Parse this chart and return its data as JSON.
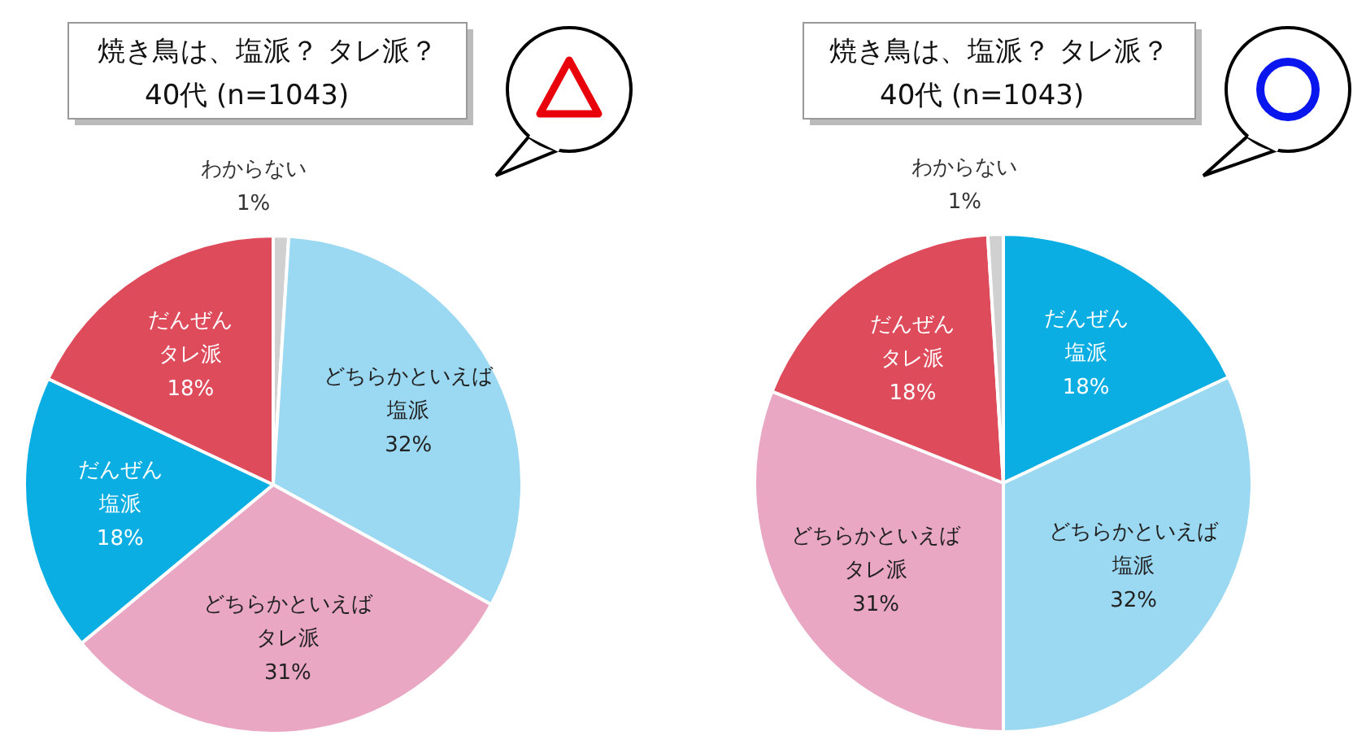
{
  "chart_data": [
    {
      "type": "pie",
      "title": "焼き鳥は、塩派？ タレ派？",
      "subtitle": "40代 (n=1043)",
      "categories": [
        "わからない",
        "どちらかといえば塩派",
        "どちらかといえばタレ派",
        "だんぜん塩派",
        "だんぜんタレ派"
      ],
      "values": [
        1,
        32,
        31,
        18,
        18
      ],
      "value_labels": [
        "1%",
        "32%",
        "31%",
        "18%",
        "18%"
      ],
      "colors": [
        "#d0d0d0",
        "#9bd8f2",
        "#eaa7c3",
        "#0aaee2",
        "#de4b5b"
      ]
    },
    {
      "type": "pie",
      "title": "焼き鳥は、塩派？ タレ派？",
      "subtitle": "40代 (n=1043)",
      "categories": [
        "だんぜん塩派",
        "どちらかといえば塩派",
        "どちらかといえばタレ派",
        "だんぜんタレ派",
        "わからない"
      ],
      "values": [
        18,
        32,
        31,
        18,
        1
      ],
      "value_labels": [
        "18%",
        "32%",
        "31%",
        "18%",
        "1%"
      ],
      "colors": [
        "#0aaee2",
        "#9bd8f2",
        "#eaa7c3",
        "#de4b5b",
        "#d0d0d0"
      ]
    }
  ]
}
